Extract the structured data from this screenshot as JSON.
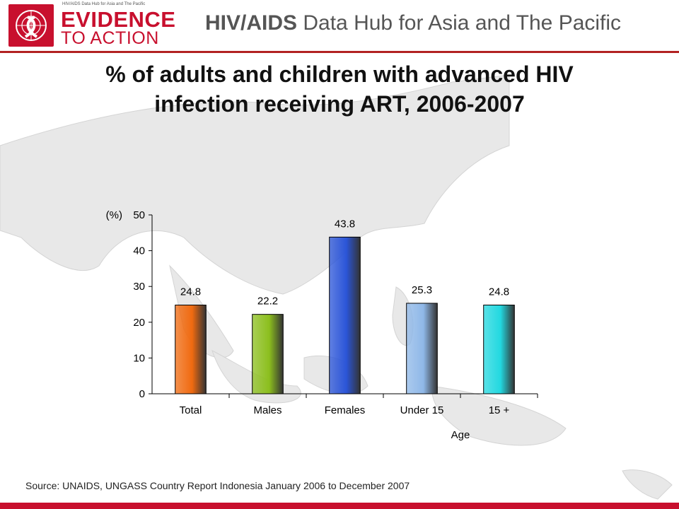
{
  "header": {
    "logo_small_text": "HIV/AIDS Data Hub for Asia and The Pacific",
    "logo_evidence": "EVIDENCE",
    "logo_action": "TO ACTION",
    "hub_title_bold": "HIV/AIDS",
    "hub_title_rest": " Data Hub for Asia and The Pacific",
    "accent_color": "#c8102e"
  },
  "slide": {
    "title_line1": "% of adults and children with advanced HIV",
    "title_line2": "infection receiving ART, 2006-2007",
    "source": "Source: UNAIDS, UNGASS Country Report Indonesia January 2006 to December 2007"
  },
  "chart_data": {
    "type": "bar",
    "title": "% of adults and children with advanced HIV infection receiving ART, 2006-2007",
    "ylabel": "(%)",
    "xlabel": "Age",
    "categories": [
      "Total",
      "Males",
      "Females",
      "Under 15",
      "15 +"
    ],
    "values": [
      24.8,
      22.2,
      43.8,
      25.3,
      24.8
    ],
    "data_labels": [
      "24.8",
      "22.2",
      "43.8",
      "25.3",
      "24.8"
    ],
    "ylim": [
      0,
      50
    ],
    "yticks": [
      0,
      10,
      20,
      30,
      40,
      50
    ],
    "grid": false,
    "legend": "none",
    "bar_colors": [
      "#f06a10",
      "#8cbf1e",
      "#2b55d8",
      "#8fb8e8",
      "#22d8e0"
    ]
  }
}
